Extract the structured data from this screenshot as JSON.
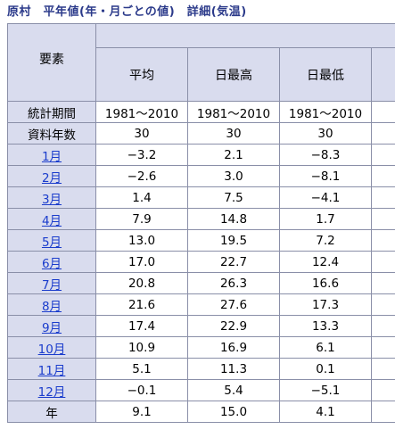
{
  "title": "原村　平年値(年・月ごとの値)　詳細(気温)",
  "header": {
    "element_label": "要素",
    "columns": [
      "平均",
      "日最高",
      "日最低"
    ]
  },
  "meta_rows": [
    {
      "label": "統計期間",
      "values": [
        "1981～2010",
        "1981～2010",
        "1981～2010"
      ]
    },
    {
      "label": "資料年数",
      "values": [
        "30",
        "30",
        "30"
      ]
    }
  ],
  "month_rows": [
    {
      "label": "1月",
      "values": [
        "−3.2",
        "2.1",
        "−8.3"
      ]
    },
    {
      "label": "2月",
      "values": [
        "−2.6",
        "3.0",
        "−8.1"
      ]
    },
    {
      "label": "3月",
      "values": [
        "1.4",
        "7.5",
        "−4.1"
      ]
    },
    {
      "label": "4月",
      "values": [
        "7.9",
        "14.8",
        "1.7"
      ]
    },
    {
      "label": "5月",
      "values": [
        "13.0",
        "19.5",
        "7.2"
      ]
    },
    {
      "label": "6月",
      "values": [
        "17.0",
        "22.7",
        "12.4"
      ]
    },
    {
      "label": "7月",
      "values": [
        "20.8",
        "26.3",
        "16.6"
      ]
    },
    {
      "label": "8月",
      "values": [
        "21.6",
        "27.6",
        "17.3"
      ]
    },
    {
      "label": "9月",
      "values": [
        "17.4",
        "22.9",
        "13.3"
      ]
    },
    {
      "label": "10月",
      "values": [
        "10.9",
        "16.9",
        "6.1"
      ]
    },
    {
      "label": "11月",
      "values": [
        "5.1",
        "11.3",
        "0.1"
      ]
    },
    {
      "label": "12月",
      "values": [
        "−0.1",
        "5.4",
        "−5.1"
      ]
    }
  ],
  "year_row": {
    "label": "年",
    "values": [
      "9.1",
      "15.0",
      "4.1"
    ]
  }
}
